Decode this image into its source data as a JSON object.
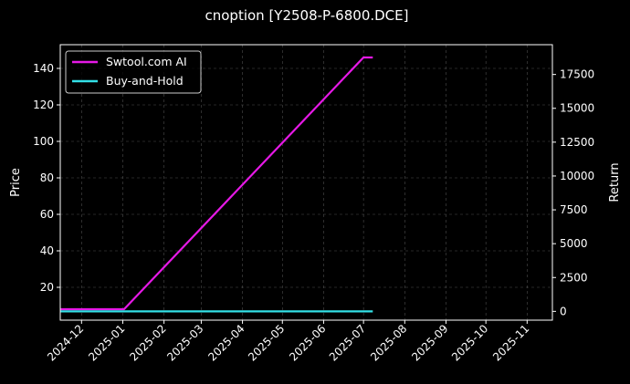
{
  "chart_data": {
    "type": "line",
    "title": "cnoption [Y2508-P-6800.DCE]",
    "xlabel": "",
    "ylabel_left": "Price",
    "ylabel_right": "Return",
    "x_tick_labels": [
      "2024-12",
      "2025-01",
      "2025-02",
      "2025-03",
      "2025-04",
      "2025-05",
      "2025-06",
      "2025-07",
      "2025-08",
      "2025-09",
      "2025-10",
      "2025-11"
    ],
    "xlim": [
      "2024-11-15",
      "2025-11-20"
    ],
    "ylim_left": [
      2,
      153
    ],
    "ylim_right": [
      -650,
      19700
    ],
    "y_ticks_left": [
      20,
      40,
      60,
      80,
      100,
      120,
      140
    ],
    "y_ticks_right": [
      0,
      2500,
      5000,
      7500,
      10000,
      12500,
      15000,
      17500
    ],
    "grid": true,
    "legend_position": "top-left",
    "series": [
      {
        "name": "Swtool.com AI",
        "axis": "left",
        "color": "#e619e6",
        "x": [
          "2024-11-15",
          "2025-01-02",
          "2025-07-01",
          "2025-07-08"
        ],
        "y": [
          8,
          8,
          146,
          146
        ]
      },
      {
        "name": "Buy-and-Hold",
        "axis": "right",
        "color": "#33e0e6",
        "x": [
          "2024-11-15",
          "2025-07-08"
        ],
        "y": [
          0,
          0
        ]
      }
    ]
  }
}
